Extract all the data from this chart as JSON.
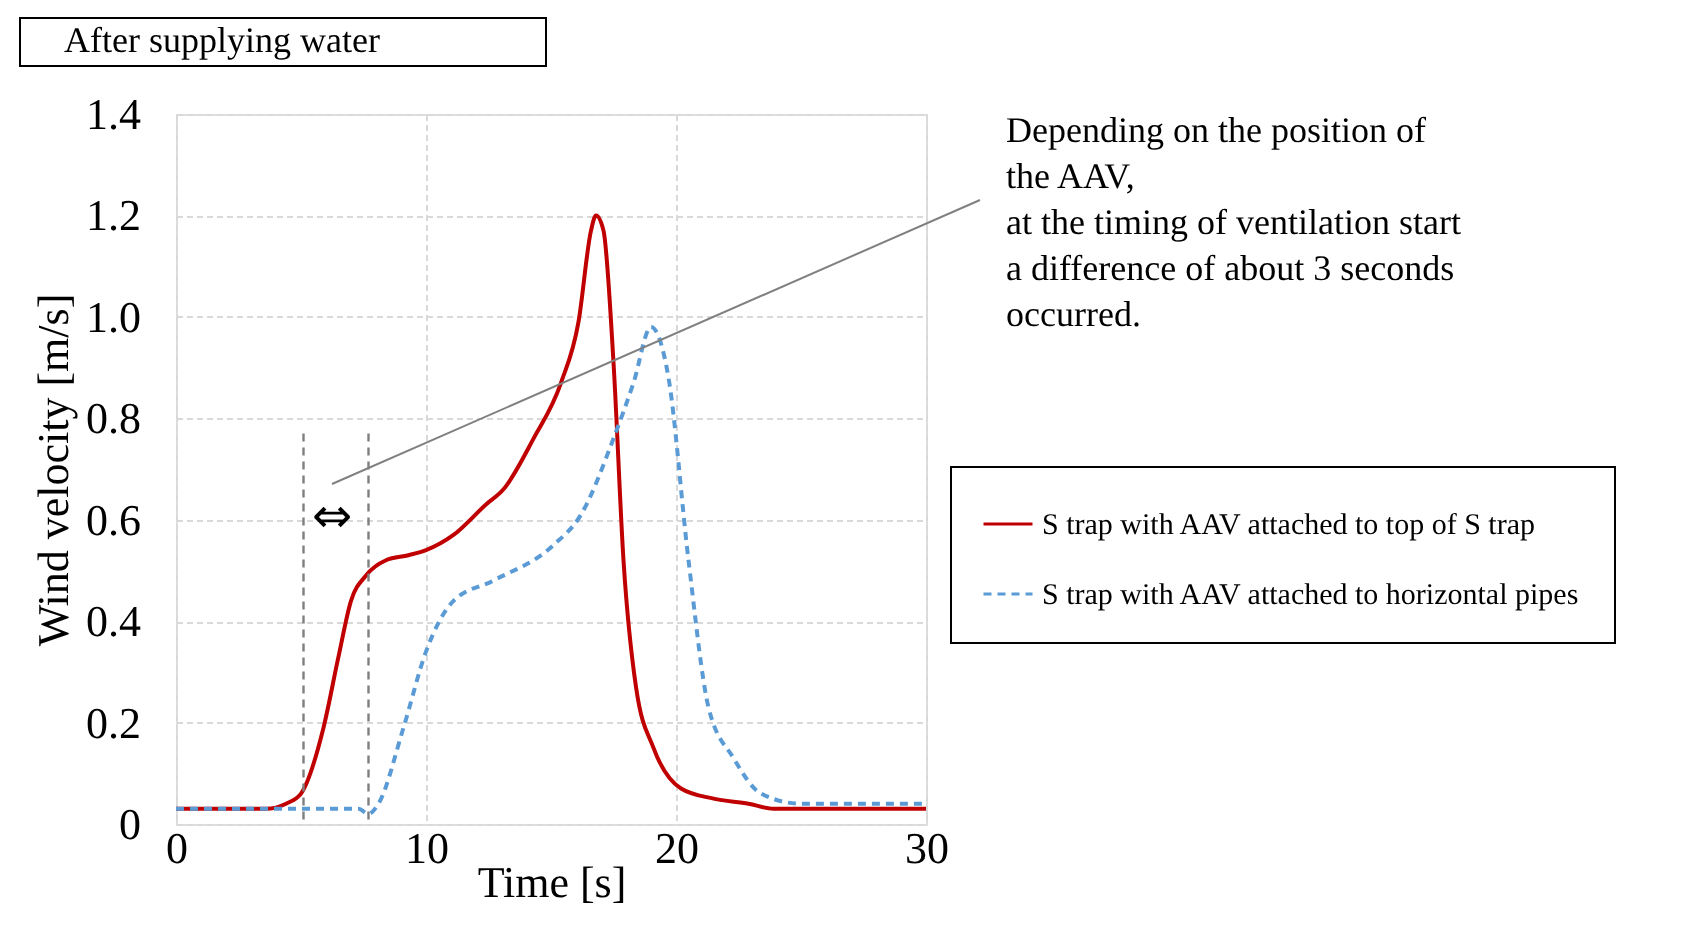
{
  "chart_data": {
    "type": "line",
    "title": "After supplying water",
    "xlabel": "Time [s]",
    "ylabel": "Wind velocity [m/s]",
    "xlim": [
      0,
      30
    ],
    "xticks": [
      0,
      10,
      20,
      30
    ],
    "ylim": [
      0,
      1.4
    ],
    "yticks": [
      0,
      0.2,
      0.4,
      0.6,
      0.8,
      {
        "value": 1.0,
        "label": "1.0"
      },
      1.2,
      1.4
    ],
    "grid": true,
    "legend": "right",
    "marker": "none",
    "series": [
      {
        "name": "S trap with AAV attached to top of S trap",
        "color": "#c00000",
        "line_style": "solid",
        "x": [
          0,
          3.6,
          4.4,
          5,
          5.9,
          6.5,
          7,
          7.6,
          8.4,
          9.3,
          10,
          11.1,
          12.4,
          13.1,
          14.3,
          15.4,
          16.1,
          16.6,
          16.8,
          17.1,
          17.5,
          17.9,
          18.4,
          19.1,
          20.2,
          21.5,
          22.9,
          23.9,
          30
        ],
        "values": [
          0.03,
          0.03,
          0.04,
          0.06,
          0.19,
          0.33,
          0.44,
          0.49,
          0.52,
          0.53,
          0.54,
          0.57,
          0.63,
          0.66,
          0.76,
          0.87,
          0.99,
          1.17,
          1.2,
          1.17,
          0.91,
          0.52,
          0.27,
          0.15,
          0.07,
          0.05,
          0.04,
          0.03,
          0.03
        ]
      },
      {
        "name": "S trap with AAV attached to horizontal pipes",
        "color": "#5b9bd5",
        "line_style": "dashed",
        "x": [
          0,
          7.3,
          7.7,
          8.1,
          9.1,
          10,
          11.1,
          12.7,
          15.1,
          16.2,
          17.5,
          18.3,
          19,
          19.7,
          20.5,
          21.3,
          22.3,
          23.4,
          25,
          30
        ],
        "values": [
          0.03,
          0.03,
          0.02,
          0.04,
          0.19,
          0.34,
          0.44,
          0.48,
          0.55,
          0.61,
          0.76,
          0.87,
          0.98,
          0.88,
          0.52,
          0.23,
          0.13,
          0.06,
          0.04,
          0.04
        ]
      }
    ],
    "ref_lines": [
      {
        "axis": "x",
        "value": 5.1,
        "color": "#7f7f7f",
        "line_style": "dashed"
      },
      {
        "axis": "x",
        "value": 7.7,
        "color": "#7f7f7f",
        "line_style": "dashed"
      }
    ],
    "annotations": [
      "Depending on the position of\nthe AAV,\nat the timing of ventilation start\na difference of about 3 seconds\noccurred.",
      "⇔"
    ]
  }
}
